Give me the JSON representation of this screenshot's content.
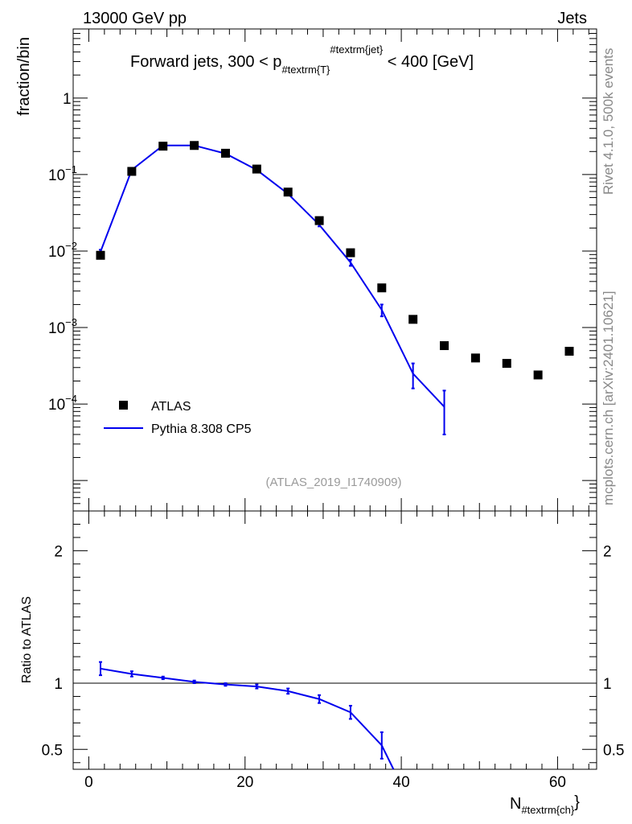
{
  "header": {
    "left": "13000 GeV pp",
    "right": "Jets"
  },
  "side_labels": {
    "top": "Rivet 4.1.0,  500k events",
    "bottom": "mcplots.cern.ch [arXiv:2401.10621]"
  },
  "colors": {
    "data": "#000000",
    "mc": "#0000ee",
    "side_text": "#888888",
    "ref_text": "#9a9a9a"
  },
  "chart_data": [
    {
      "type": "scatter",
      "panel": "main",
      "title": "Forward jets, 300 < p_{#textrm{T}}^{#textrm{jet}} < 400 [GeV]",
      "title_parts": {
        "pre": "Forward jets, 300 < p",
        "sub": "#textrm{T}",
        "sup": "#textrm{jet}",
        "post": " < 400 [GeV]"
      },
      "ylabel": "fraction/bin",
      "xlim": [
        -2,
        65
      ],
      "ylog": true,
      "ylim": [
        4e-06,
        8
      ],
      "yticks": [
        {
          "value": 1,
          "label": "1",
          "exp": ""
        },
        {
          "value": 0.1,
          "label": "10",
          "exp": "−1"
        },
        {
          "value": 0.01,
          "label": "10",
          "exp": "−2"
        },
        {
          "value": 0.001,
          "label": "10",
          "exp": "−3"
        },
        {
          "value": 0.0001,
          "label": "10",
          "exp": "−4"
        }
      ],
      "reference": "(ATLAS_2019_I1740909)",
      "legend": {
        "position": "middle-left",
        "entries": [
          "ATLAS",
          "Pythia 8.308 CP5"
        ]
      },
      "series": [
        {
          "name": "ATLAS",
          "style": "markers",
          "x": [
            1.5,
            5.5,
            9.5,
            13.5,
            17.5,
            21.5,
            25.5,
            29.5,
            33.5,
            37.5,
            41.5,
            45.5,
            49.5,
            53.5,
            57.5,
            61.5
          ],
          "y": [
            0.0088,
            0.11,
            0.235,
            0.24,
            0.19,
            0.118,
            0.059,
            0.025,
            0.0095,
            0.0033,
            0.00128,
            0.00058,
            0.0004,
            0.00034,
            0.00024,
            0.00049
          ]
        },
        {
          "name": "Pythia 8.308 CP5",
          "style": "line",
          "x": [
            1.5,
            5.5,
            9.5,
            13.5,
            17.5,
            21.5,
            25.5,
            29.5,
            33.5,
            37.5,
            41.5,
            45.5
          ],
          "y": [
            0.0098,
            0.115,
            0.24,
            0.24,
            0.188,
            0.115,
            0.056,
            0.022,
            0.0071,
            0.0017,
            0.00025,
            9.2e-05
          ],
          "err_lo": [
            0.0096,
            0.114,
            0.238,
            0.238,
            0.187,
            0.114,
            0.055,
            0.021,
            0.0064,
            0.0014,
            0.00016,
            4e-05
          ],
          "err_hi": [
            0.0104,
            0.116,
            0.242,
            0.242,
            0.19,
            0.116,
            0.057,
            0.023,
            0.0077,
            0.002,
            0.00034,
            0.00015
          ]
        }
      ]
    },
    {
      "type": "line",
      "panel": "ratio",
      "ylabel": "Ratio to ATLAS",
      "xlabel": "N_{#textrm{ch}}",
      "xlabel_parts": {
        "main": "N",
        "sub": "#textrm{ch}"
      },
      "xlim": [
        -2,
        65
      ],
      "ylim": [
        0.35,
        2.3
      ],
      "yticks": [
        0.5,
        1,
        2
      ],
      "xticks": [
        0,
        20,
        40,
        60
      ],
      "reference_line": 1,
      "series": [
        {
          "name": "Pythia 8.308 CP5",
          "x": [
            1.5,
            5.5,
            9.5,
            13.5,
            17.5,
            21.5,
            25.5,
            29.5,
            33.5,
            37.5,
            39.0
          ],
          "y": [
            1.11,
            1.07,
            1.04,
            1.01,
            0.99,
            0.975,
            0.94,
            0.88,
            0.78,
            0.53,
            0.35
          ],
          "err_lo": [
            1.06,
            1.05,
            1.03,
            1.0,
            0.98,
            0.96,
            0.92,
            0.85,
            0.73,
            0.43,
            null
          ],
          "err_hi": [
            1.16,
            1.09,
            1.05,
            1.02,
            1.0,
            0.99,
            0.96,
            0.91,
            0.83,
            0.63,
            null
          ]
        }
      ]
    }
  ]
}
